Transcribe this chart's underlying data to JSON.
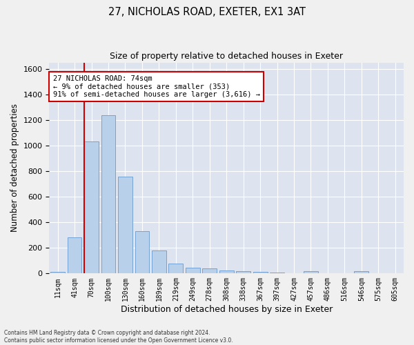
{
  "title_line1": "27, NICHOLAS ROAD, EXETER, EX1 3AT",
  "title_line2": "Size of property relative to detached houses in Exeter",
  "xlabel": "Distribution of detached houses by size in Exeter",
  "ylabel": "Number of detached properties",
  "bar_color": "#b8d0ea",
  "bar_edge_color": "#6699cc",
  "background_color": "#dde4f0",
  "grid_color": "#ffffff",
  "annotation_box_color": "#cc0000",
  "property_line_color": "#cc0000",
  "bin_labels": [
    "11sqm",
    "41sqm",
    "70sqm",
    "100sqm",
    "130sqm",
    "160sqm",
    "189sqm",
    "219sqm",
    "249sqm",
    "278sqm",
    "308sqm",
    "338sqm",
    "367sqm",
    "397sqm",
    "427sqm",
    "457sqm",
    "486sqm",
    "516sqm",
    "546sqm",
    "575sqm",
    "605sqm"
  ],
  "bar_values": [
    10,
    280,
    1035,
    1235,
    755,
    330,
    180,
    80,
    45,
    38,
    25,
    18,
    10,
    5,
    3,
    20,
    3,
    0,
    20,
    0,
    0
  ],
  "property_bin_index": 2,
  "annotation_line1": "27 NICHOLAS ROAD: 74sqm",
  "annotation_line2": "← 9% of detached houses are smaller (353)",
  "annotation_line3": "91% of semi-detached houses are larger (3,616) →",
  "ylim": [
    0,
    1650
  ],
  "yticks": [
    0,
    200,
    400,
    600,
    800,
    1000,
    1200,
    1400,
    1600
  ],
  "fig_width": 6.0,
  "fig_height": 5.0,
  "fig_bg": "#f0f0f0",
  "footnote_line1": "Contains HM Land Registry data © Crown copyright and database right 2024.",
  "footnote_line2": "Contains public sector information licensed under the Open Government Licence v3.0."
}
